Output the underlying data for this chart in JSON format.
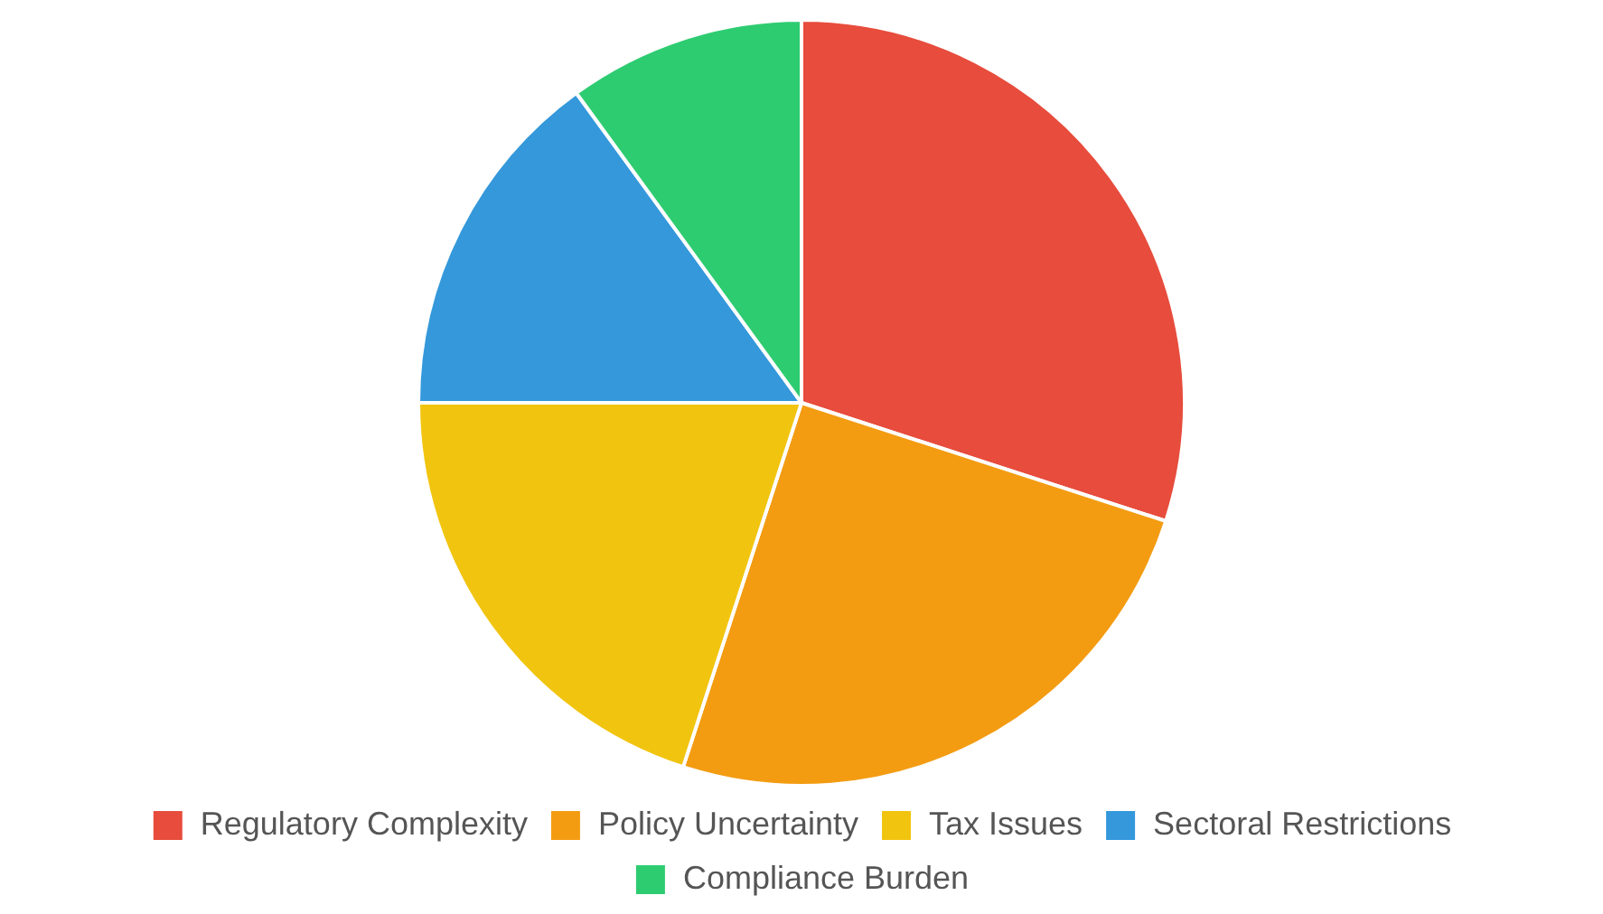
{
  "chart_data": {
    "type": "pie",
    "categories": [
      "Regulatory Complexity",
      "Policy Uncertainty",
      "Tax Issues",
      "Sectoral Restrictions",
      "Compliance Burden"
    ],
    "values": [
      30,
      25,
      20,
      15,
      10
    ],
    "colors": [
      "#e74c3c",
      "#f39c12",
      "#f1c40f",
      "#3498db",
      "#2ecc71"
    ],
    "legend": "bottom"
  }
}
